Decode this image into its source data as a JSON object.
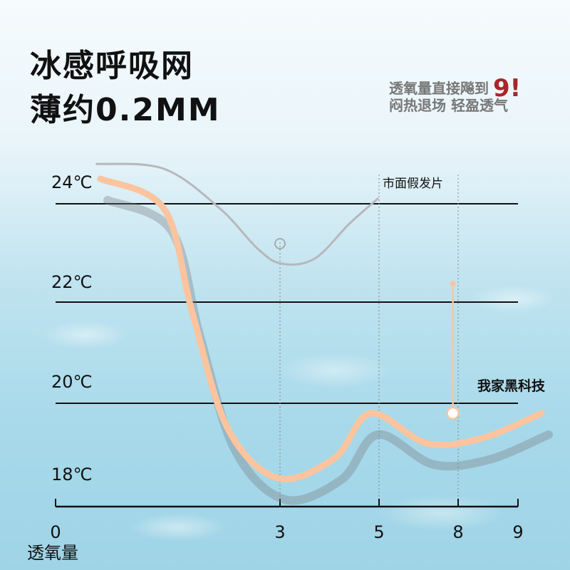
{
  "header": {
    "title_line1": "冰感呼吸网",
    "title_line2": "薄约0.2MM",
    "slogan_line1": "透氧量直接飚到",
    "slogan_highlight": "9!",
    "slogan_line2": "闷热退场 轻盈透气"
  },
  "colors": {
    "primary_series": "#fbc49e",
    "secondary_series": "#b7b7bb",
    "highlight": "#a8262b"
  },
  "chart_data": {
    "type": "line",
    "title": "",
    "xlabel": "透氧量",
    "ylabel": "",
    "x_ticks": [
      0,
      3,
      5,
      8,
      9
    ],
    "y_ticks": [
      "24℃",
      "22℃",
      "20℃",
      "18℃"
    ],
    "y_tick_values": [
      24,
      22,
      20,
      18
    ],
    "ylim": [
      18,
      25
    ],
    "grid": true,
    "series": [
      {
        "name": "我家黑科技",
        "x": [
          0.6,
          1.45,
          1.83,
          2.3,
          2.97,
          4.1,
          4.83,
          6.8,
          8.4,
          9.4
        ],
        "y": [
          24.5,
          23.9,
          21.8,
          19.5,
          18.5,
          18.9,
          19.8,
          19.2,
          19.3,
          19.8
        ],
        "marker": {
          "x": 7.8,
          "y": 19.8,
          "stem_top": 22.4
        }
      },
      {
        "name": "市面假发片",
        "x": [
          0.55,
          1.45,
          2.2,
          2.7,
          3.03,
          3.7,
          4.4,
          4.97
        ],
        "y": [
          24.8,
          24.7,
          23.9,
          23.1,
          22.8,
          22.9,
          23.6,
          24.1
        ],
        "marker": {
          "x": 3,
          "y": 23.2
        }
      }
    ]
  }
}
